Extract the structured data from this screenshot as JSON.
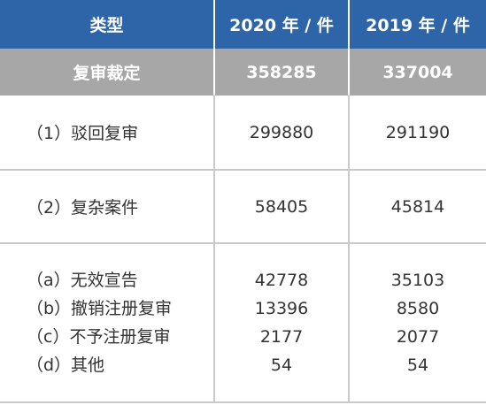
{
  "table": {
    "headers": [
      "类型",
      "2020 年 / 件",
      "2019 年 / 件"
    ],
    "summary": {
      "label": "复审裁定",
      "v2020": "358285",
      "v2019": "337004"
    },
    "rows": [
      {
        "label": "（1）驳回复审",
        "v2020": "299880",
        "v2019": "291190"
      },
      {
        "label": "（2）复杂案件",
        "v2020": "58405",
        "v2019": "45814"
      }
    ],
    "subrows": [
      {
        "label": "（a）无效宣告",
        "v2020": "42778",
        "v2019": "35103"
      },
      {
        "label": "（b）撤销注册复审",
        "v2020": "13396",
        "v2019": "8580"
      },
      {
        "label": "（c）不予注册复审",
        "v2020": "2177",
        "v2019": "2077"
      },
      {
        "label": "（d）其他",
        "v2020": "54",
        "v2019": "54"
      }
    ]
  },
  "colors": {
    "header_bg": "#2e64a8",
    "summary_bg": "#a7a7a7",
    "grid_line": "#c9c9c9"
  }
}
